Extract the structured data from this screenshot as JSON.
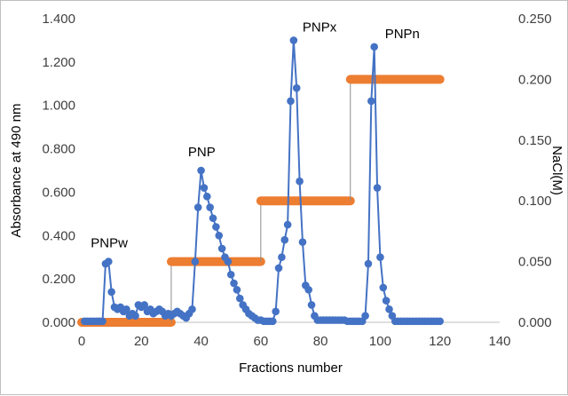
{
  "chart_data": {
    "type": "line",
    "xlabel": "Fractions number",
    "ylabel": "Absorbance at 490 nm",
    "y2label": "NaCl(M)",
    "xlim": [
      0,
      140
    ],
    "ylim": [
      0,
      1.4
    ],
    "y2lim": [
      0,
      0.25
    ],
    "xticks": [
      "0",
      "20",
      "40",
      "60",
      "80",
      "100",
      "120",
      "140"
    ],
    "yticks": [
      "0.000",
      "0.200",
      "0.400",
      "0.600",
      "0.800",
      "1.000",
      "1.200",
      "1.400"
    ],
    "y2ticks": [
      "0.000",
      "0.050",
      "0.100",
      "0.150",
      "0.200",
      "0.250"
    ],
    "grid": false,
    "colors": {
      "absorbance": "#4472c4",
      "nacl": "#ed7d31",
      "connector": "#8c8c8c"
    },
    "annotations": [
      {
        "text": "PNPw",
        "x": 9,
        "y": 0.28
      },
      {
        "text": "PNP",
        "x": 41,
        "y": 0.7
      },
      {
        "text": "PNPx",
        "x": 71,
        "y": 1.3
      },
      {
        "text": "PNPn",
        "x": 98,
        "y": 1.27
      }
    ],
    "series": [
      {
        "axis": "left",
        "x": [
          1,
          2,
          3,
          4,
          5,
          6,
          7,
          8,
          9,
          10,
          11,
          12,
          13,
          14,
          15,
          16,
          17,
          18,
          19,
          20,
          21,
          22,
          23,
          24,
          25,
          26,
          27,
          28,
          29,
          30,
          31,
          32,
          33,
          34,
          35,
          36,
          37,
          38,
          39,
          40,
          41,
          42,
          43,
          44,
          45,
          46,
          47,
          48,
          49,
          50,
          51,
          52,
          53,
          54,
          55,
          56,
          57,
          58,
          59,
          60,
          61,
          62,
          63,
          64,
          65,
          66,
          67,
          68,
          69,
          70,
          71,
          72,
          73,
          74,
          75,
          76,
          77,
          78,
          79,
          80,
          81,
          82,
          83,
          84,
          85,
          86,
          87,
          88,
          89,
          90,
          91,
          92,
          93,
          94,
          95,
          96,
          97,
          98,
          99,
          100,
          101,
          102,
          103,
          104,
          105,
          106,
          107,
          108,
          109,
          110,
          111,
          112,
          113,
          114,
          115,
          116,
          117,
          118,
          119,
          120
        ],
        "values": [
          0.005,
          0.005,
          0.005,
          0.005,
          0.005,
          0.005,
          0.005,
          0.27,
          0.28,
          0.14,
          0.07,
          0.06,
          0.07,
          0.05,
          0.06,
          0.03,
          0.04,
          0.03,
          0.08,
          0.07,
          0.08,
          0.05,
          0.06,
          0.04,
          0.05,
          0.06,
          0.05,
          0.03,
          0.04,
          0.03,
          0.04,
          0.05,
          0.04,
          0.03,
          0.02,
          0.04,
          0.06,
          0.28,
          0.53,
          0.7,
          0.62,
          0.58,
          0.53,
          0.48,
          0.44,
          0.4,
          0.34,
          0.3,
          0.28,
          0.22,
          0.18,
          0.15,
          0.11,
          0.08,
          0.06,
          0.04,
          0.03,
          0.02,
          0.01,
          0.01,
          0.005,
          0.005,
          0.005,
          0.005,
          0.05,
          0.25,
          0.3,
          0.38,
          0.45,
          1.02,
          1.3,
          1.08,
          0.65,
          0.37,
          0.17,
          0.15,
          0.08,
          0.03,
          0.01,
          0.01,
          0.01,
          0.01,
          0.01,
          0.01,
          0.01,
          0.01,
          0.01,
          0.01,
          0.005,
          0.005,
          0.005,
          0.005,
          0.005,
          0.005,
          0.03,
          0.27,
          1.02,
          1.27,
          0.62,
          0.3,
          0.16,
          0.1,
          0.06,
          0.03,
          0.005,
          0.005,
          0.005,
          0.005,
          0.005,
          0.005,
          0.005,
          0.005,
          0.005,
          0.005,
          0.005,
          0.005,
          0.005,
          0.005,
          0.005,
          0.005
        ]
      },
      {
        "axis": "right",
        "steps": [
          {
            "from": 0,
            "to": 30,
            "value": 0.0
          },
          {
            "from": 30,
            "to": 60,
            "value": 0.05
          },
          {
            "from": 60,
            "to": 90,
            "value": 0.1
          },
          {
            "from": 90,
            "to": 120,
            "value": 0.2
          }
        ]
      }
    ]
  }
}
